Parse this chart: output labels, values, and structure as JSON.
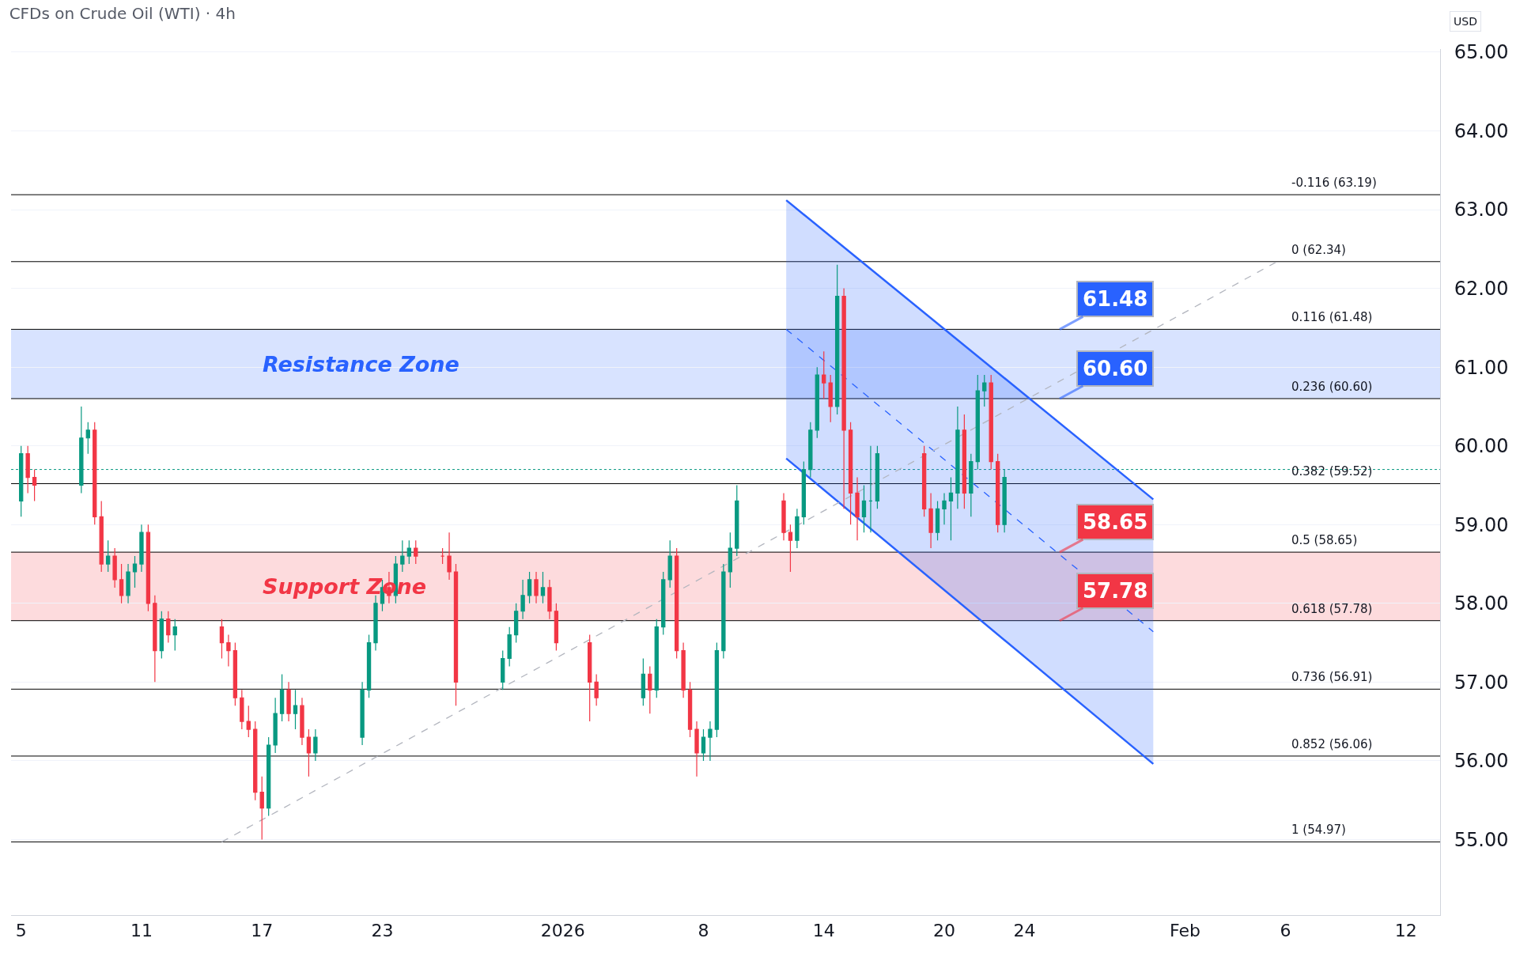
{
  "chart_data": {
    "type": "candlestick",
    "title": "CFDs on Crude Oil (WTI) · 4h",
    "x": [
      "2025-12-05T00:00",
      "2025-12-05T08:00",
      "2025-12-05T16:00",
      "2025-12-08T00:00",
      "2025-12-08T08:00",
      "2025-12-08T16:00",
      "2025-12-09T00:00",
      "2025-12-09T08:00",
      "2025-12-09T16:00",
      "2025-12-10T00:00",
      "2025-12-10T08:00",
      "2025-12-10T16:00",
      "2025-12-11T00:00",
      "2025-12-11T08:00",
      "2025-12-11T16:00",
      "2025-12-12T00:00",
      "2025-12-12T08:00",
      "2025-12-12T16:00",
      "2025-12-15T00:00",
      "2025-12-15T08:00",
      "2025-12-15T16:00",
      "2025-12-16T00:00",
      "2025-12-16T08:00",
      "2025-12-16T16:00",
      "2025-12-17T00:00",
      "2025-12-17T08:00",
      "2025-12-17T16:00",
      "2025-12-18T00:00",
      "2025-12-18T08:00",
      "2025-12-18T16:00",
      "2025-12-19T00:00",
      "2025-12-19T08:00",
      "2025-12-19T16:00",
      "2025-12-22T00:00",
      "2025-12-22T08:00",
      "2025-12-22T16:00",
      "2025-12-23T00:00",
      "2025-12-23T08:00",
      "2025-12-23T16:00",
      "2025-12-24T00:00",
      "2025-12-24T08:00",
      "2025-12-24T16:00",
      "2025-12-26T00:00",
      "2025-12-26T08:00",
      "2025-12-26T16:00",
      "2025-12-29T00:00",
      "2025-12-29T08:00",
      "2025-12-29T16:00",
      "2025-12-30T00:00",
      "2025-12-30T08:00",
      "2025-12-30T16:00",
      "2025-12-31T00:00",
      "2025-12-31T08:00",
      "2025-12-31T16:00",
      "2026-01-02T08:00",
      "2026-01-02T16:00",
      "2026-01-05T00:00",
      "2026-01-05T08:00",
      "2026-01-05T16:00",
      "2026-01-06T00:00",
      "2026-01-06T08:00",
      "2026-01-06T16:00",
      "2026-01-07T00:00",
      "2026-01-07T08:00",
      "2026-01-07T16:00",
      "2026-01-08T00:00",
      "2026-01-08T08:00",
      "2026-01-08T16:00",
      "2026-01-09T00:00",
      "2026-01-09T08:00",
      "2026-01-09T16:00",
      "2026-01-12T00:00",
      "2026-01-12T08:00",
      "2026-01-12T16:00",
      "2026-01-13T00:00",
      "2026-01-13T08:00",
      "2026-01-13T16:00",
      "2026-01-14T00:00",
      "2026-01-14T08:00",
      "2026-01-14T16:00",
      "2026-01-15T00:00",
      "2026-01-15T08:00",
      "2026-01-15T16:00",
      "2026-01-16T00:00",
      "2026-01-16T08:00",
      "2026-01-16T16:00",
      "2026-01-19T00:00",
      "2026-01-19T08:00",
      "2026-01-19T16:00",
      "2026-01-20T00:00",
      "2026-01-20T08:00",
      "2026-01-20T16:00",
      "2026-01-21T00:00",
      "2026-01-21T08:00",
      "2026-01-21T16:00",
      "2026-01-22T00:00",
      "2026-01-22T08:00",
      "2026-01-22T16:00",
      "2026-01-23T00:00"
    ],
    "ohlc": [
      [
        59.3,
        60.0,
        59.1,
        59.9
      ],
      [
        59.9,
        60.0,
        59.4,
        59.6
      ],
      [
        59.6,
        59.7,
        59.3,
        59.5
      ],
      [
        59.5,
        60.5,
        59.4,
        60.1
      ],
      [
        60.1,
        60.3,
        59.9,
        60.2
      ],
      [
        60.2,
        60.3,
        59.0,
        59.1
      ],
      [
        59.1,
        59.3,
        58.4,
        58.5
      ],
      [
        58.5,
        58.8,
        58.4,
        58.6
      ],
      [
        58.6,
        58.7,
        58.2,
        58.3
      ],
      [
        58.3,
        58.5,
        58.0,
        58.1
      ],
      [
        58.1,
        58.5,
        58.0,
        58.4
      ],
      [
        58.4,
        58.6,
        58.2,
        58.5
      ],
      [
        58.5,
        59.0,
        58.4,
        58.9
      ],
      [
        58.9,
        59.0,
        57.9,
        58.0
      ],
      [
        58.0,
        58.1,
        57.0,
        57.4
      ],
      [
        57.4,
        57.9,
        57.3,
        57.8
      ],
      [
        57.8,
        57.9,
        57.5,
        57.6
      ],
      [
        57.6,
        57.8,
        57.4,
        57.7
      ],
      [
        57.7,
        57.8,
        57.3,
        57.5
      ],
      [
        57.5,
        57.6,
        57.2,
        57.4
      ],
      [
        57.4,
        57.5,
        56.7,
        56.8
      ],
      [
        56.8,
        56.9,
        56.4,
        56.5
      ],
      [
        56.5,
        56.7,
        56.3,
        56.4
      ],
      [
        56.4,
        56.5,
        55.5,
        55.6
      ],
      [
        55.6,
        55.8,
        55.0,
        55.4
      ],
      [
        55.4,
        56.3,
        55.3,
        56.2
      ],
      [
        56.2,
        56.8,
        56.1,
        56.6
      ],
      [
        56.6,
        57.1,
        56.5,
        56.9
      ],
      [
        56.9,
        57.0,
        56.5,
        56.6
      ],
      [
        56.6,
        56.9,
        56.4,
        56.7
      ],
      [
        56.7,
        56.8,
        56.2,
        56.3
      ],
      [
        56.3,
        56.4,
        55.8,
        56.1
      ],
      [
        56.1,
        56.4,
        56.0,
        56.3
      ],
      [
        56.3,
        57.0,
        56.2,
        56.9
      ],
      [
        56.9,
        57.6,
        56.8,
        57.5
      ],
      [
        57.5,
        58.1,
        57.4,
        58.0
      ],
      [
        58.0,
        58.3,
        57.9,
        58.2
      ],
      [
        58.2,
        58.4,
        58.0,
        58.1
      ],
      [
        58.1,
        58.6,
        58.0,
        58.5
      ],
      [
        58.5,
        58.8,
        58.4,
        58.6
      ],
      [
        58.6,
        58.8,
        58.5,
        58.7
      ],
      [
        58.7,
        58.8,
        58.5,
        58.6
      ],
      [
        58.6,
        58.7,
        58.5,
        58.6
      ],
      [
        58.6,
        58.9,
        58.3,
        58.4
      ],
      [
        58.4,
        58.5,
        56.7,
        57.0
      ],
      [
        57.0,
        57.4,
        56.9,
        57.3
      ],
      [
        57.3,
        57.7,
        57.2,
        57.6
      ],
      [
        57.6,
        58.0,
        57.5,
        57.9
      ],
      [
        57.9,
        58.3,
        57.8,
        58.1
      ],
      [
        58.1,
        58.4,
        58.0,
        58.3
      ],
      [
        58.3,
        58.4,
        58.0,
        58.1
      ],
      [
        58.1,
        58.4,
        58.0,
        58.2
      ],
      [
        58.2,
        58.3,
        57.8,
        57.9
      ],
      [
        57.9,
        58.0,
        57.4,
        57.5
      ],
      [
        57.5,
        57.6,
        56.5,
        57.0
      ],
      [
        57.0,
        57.1,
        56.7,
        56.8
      ],
      [
        56.8,
        57.3,
        56.7,
        57.1
      ],
      [
        57.1,
        57.2,
        56.6,
        56.9
      ],
      [
        56.9,
        57.8,
        56.8,
        57.7
      ],
      [
        57.7,
        58.4,
        57.6,
        58.3
      ],
      [
        58.3,
        58.8,
        58.2,
        58.6
      ],
      [
        58.6,
        58.7,
        57.3,
        57.4
      ],
      [
        57.4,
        57.5,
        56.8,
        56.9
      ],
      [
        56.9,
        57.0,
        56.3,
        56.4
      ],
      [
        56.4,
        56.5,
        55.8,
        56.1
      ],
      [
        56.1,
        56.4,
        56.0,
        56.3
      ],
      [
        56.3,
        56.5,
        56.0,
        56.4
      ],
      [
        56.4,
        57.5,
        56.3,
        57.4
      ],
      [
        57.4,
        58.5,
        57.3,
        58.4
      ],
      [
        58.4,
        58.9,
        58.2,
        58.7
      ],
      [
        58.7,
        59.5,
        58.6,
        59.3
      ],
      [
        59.3,
        59.4,
        58.8,
        58.9
      ],
      [
        58.9,
        59.0,
        58.4,
        58.8
      ],
      [
        58.8,
        59.2,
        58.7,
        59.1
      ],
      [
        59.1,
        59.8,
        59.0,
        59.7
      ],
      [
        59.7,
        60.3,
        59.6,
        60.2
      ],
      [
        60.2,
        61.0,
        60.1,
        60.9
      ],
      [
        60.9,
        61.2,
        60.6,
        60.8
      ],
      [
        60.8,
        60.9,
        60.3,
        60.5
      ],
      [
        60.5,
        62.3,
        60.4,
        61.9
      ],
      [
        61.9,
        62.0,
        59.2,
        60.2
      ],
      [
        60.2,
        60.3,
        59.0,
        59.4
      ],
      [
        59.4,
        59.6,
        58.8,
        59.1
      ],
      [
        59.1,
        59.5,
        58.9,
        59.3
      ],
      [
        59.3,
        60.0,
        58.9,
        59.3
      ],
      [
        59.3,
        60.0,
        59.2,
        59.9
      ],
      [
        59.9,
        60.0,
        59.1,
        59.2
      ],
      [
        59.2,
        59.4,
        58.7,
        58.9
      ],
      [
        58.9,
        59.3,
        58.8,
        59.2
      ],
      [
        59.2,
        59.4,
        59.0,
        59.3
      ],
      [
        59.3,
        59.6,
        58.8,
        59.4
      ],
      [
        59.4,
        60.5,
        59.2,
        60.2
      ],
      [
        60.2,
        60.4,
        59.2,
        59.4
      ],
      [
        59.4,
        59.9,
        59.1,
        59.8
      ],
      [
        59.8,
        60.9,
        59.7,
        60.7
      ],
      [
        60.7,
        60.9,
        60.5,
        60.8
      ],
      [
        60.8,
        60.9,
        59.7,
        59.8
      ],
      [
        59.8,
        59.9,
        58.9,
        59.0
      ],
      [
        59.0,
        59.7,
        58.9,
        59.6
      ]
    ],
    "series": [
      {
        "type": "line",
        "color": "#2962ff",
        "line_style": "dashed",
        "x": [
          "2026-01-12T03:00",
          "2026-01-30T10:00"
        ],
        "values": [
          61.48,
          57.64
        ],
        "lower": [
          59.84,
          55.96
        ],
        "upper": [
          63.12,
          59.32
        ]
      },
      {
        "type": "line",
        "color": "#2962ff",
        "line_style": "solid",
        "x": [
          "2026-01-12T03:00",
          "2026-01-30T10:00"
        ],
        "values": [
          63.12,
          59.32
        ]
      },
      {
        "type": "line",
        "color": "#2962ff",
        "line_style": "solid",
        "x": [
          "2026-01-12T03:00",
          "2026-01-30T10:00"
        ],
        "values": [
          59.84,
          55.96
        ]
      },
      {
        "type": "line",
        "color": "#b2b5be",
        "line_style": "dashed",
        "x": [
          "2025-12-15T00:00",
          "2026-02-05T14:00"
        ],
        "values": [
          54.97,
          62.34
        ]
      }
    ],
    "xlim": [
      "2025-12-04T12:00",
      "2026-02-13T17:00"
    ],
    "xticks": [
      {
        "value": "2025-12-05",
        "label": "5"
      },
      {
        "value": "2025-12-11",
        "label": "11"
      },
      {
        "value": "2025-12-17",
        "label": "17"
      },
      {
        "value": "2025-12-23",
        "label": "23"
      },
      {
        "value": "2026-01-01",
        "label": "2026"
      },
      {
        "value": "2026-01-08",
        "label": "8"
      },
      {
        "value": "2026-01-14",
        "label": "14"
      },
      {
        "value": "2026-01-20",
        "label": "20"
      },
      {
        "value": "2026-01-24",
        "label": "24"
      },
      {
        "value": "2026-02-01",
        "label": "Feb"
      },
      {
        "value": "2026-02-06",
        "label": "6"
      },
      {
        "value": "2026-02-12",
        "label": "12"
      }
    ],
    "ylim": [
      54.04,
      65.04
    ],
    "yticks": [
      {
        "value": 55,
        "label": "55.00"
      },
      {
        "value": 56,
        "label": "56.00"
      },
      {
        "value": 57,
        "label": "57.00"
      },
      {
        "value": 58,
        "label": "58.00"
      },
      {
        "value": 59,
        "label": "59.00"
      },
      {
        "value": 60,
        "label": "60.00"
      },
      {
        "value": 61,
        "label": "61.00"
      },
      {
        "value": 62,
        "label": "62.00"
      },
      {
        "value": 63,
        "label": "63.00"
      },
      {
        "value": 64,
        "label": "64.00"
      },
      {
        "value": 65,
        "label": "65.00"
      }
    ],
    "grid": "y",
    "ref_lines": [
      {
        "axis": "y",
        "value": 63.19,
        "label": "-0.116 (63.19)",
        "color": "#000000"
      },
      {
        "axis": "y",
        "value": 62.34,
        "label": "0 (62.34)",
        "color": "#000000"
      },
      {
        "axis": "y",
        "value": 61.48,
        "label": "0.116 (61.48)",
        "color": "#000000"
      },
      {
        "axis": "y",
        "value": 60.6,
        "label": "0.236 (60.60)",
        "color": "#000000"
      },
      {
        "axis": "y",
        "value": 59.52,
        "label": "0.382 (59.52)",
        "color": "#000000"
      },
      {
        "axis": "y",
        "value": 58.65,
        "label": "0.5 (58.65)",
        "color": "#000000"
      },
      {
        "axis": "y",
        "value": 57.78,
        "label": "0.618 (57.78)",
        "color": "#000000"
      },
      {
        "axis": "y",
        "value": 56.91,
        "label": "0.736 (56.91)",
        "color": "#000000"
      },
      {
        "axis": "y",
        "value": 56.06,
        "label": "0.852 (56.06)",
        "color": "#000000"
      },
      {
        "axis": "y",
        "value": 54.97,
        "label": "1 (54.97)",
        "color": "#000000"
      },
      {
        "axis": "y",
        "value": 59.7,
        "label": null,
        "color": "#089981",
        "line_style": "dotted"
      }
    ],
    "bands": [
      {
        "axis": "y",
        "from": 60.6,
        "to": 61.48,
        "label": "Resistance Zone",
        "color": "#2962ff"
      },
      {
        "axis": "y",
        "from": 57.78,
        "to": 58.65,
        "label": "Support Zone",
        "color": "#f23645"
      }
    ],
    "annotations": [
      "USD",
      {
        "text": "61.48",
        "x": "2026-01-25T18:00",
        "y": 61.48
      },
      {
        "text": "60.60",
        "x": "2026-01-25T18:00",
        "y": 60.6
      },
      {
        "text": "58.65",
        "x": "2026-01-25T18:00",
        "y": 58.65
      },
      {
        "text": "57.78",
        "x": "2026-01-25T18:00",
        "y": 57.78
      }
    ]
  }
}
